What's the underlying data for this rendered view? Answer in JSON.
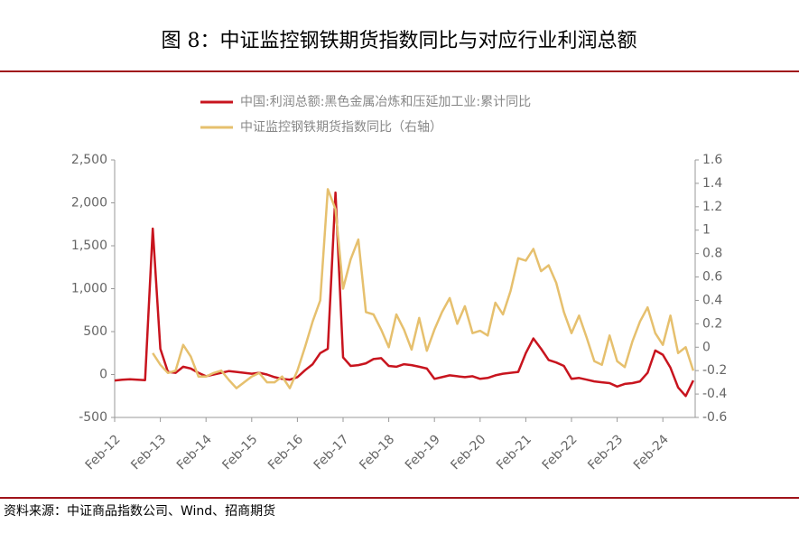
{
  "chart_data": {
    "type": "line",
    "title": "图 8：中证监控钢铁期货指数同比与对应行业利润总额",
    "source": "资料来源：中证商品指数公司、Wind、招商期货",
    "categories": [
      "Feb-12",
      null,
      null,
      null,
      null,
      null,
      "Feb-13",
      null,
      null,
      null,
      null,
      null,
      "Feb-14",
      null,
      null,
      null,
      null,
      null,
      "Feb-15",
      null,
      null,
      null,
      null,
      null,
      "Feb-16",
      null,
      null,
      null,
      null,
      null,
      "Feb-17",
      null,
      null,
      null,
      null,
      null,
      "Feb-18",
      null,
      null,
      null,
      null,
      null,
      "Feb-19",
      null,
      null,
      null,
      null,
      null,
      "Feb-20",
      null,
      null,
      null,
      null,
      null,
      "Feb-21",
      null,
      null,
      null,
      null,
      null,
      "Feb-22",
      null,
      null,
      null,
      null,
      null,
      "Feb-23",
      null,
      null,
      null,
      null,
      null,
      "Feb-24",
      null,
      null,
      null,
      null
    ],
    "series": [
      {
        "name": "中国:利润总额:黑色金属冶炼和压延加工业:累计同比",
        "color": "#c8141e",
        "axis": "y",
        "values": [
          -70,
          -60,
          -55,
          -60,
          -65,
          1700,
          300,
          30,
          20,
          90,
          70,
          20,
          -20,
          0,
          20,
          40,
          30,
          20,
          10,
          20,
          0,
          -30,
          -50,
          -60,
          -30,
          50,
          120,
          250,
          300,
          2120,
          200,
          100,
          110,
          130,
          180,
          190,
          100,
          90,
          120,
          110,
          90,
          70,
          -50,
          -30,
          -10,
          -20,
          -30,
          -20,
          -50,
          -40,
          -10,
          10,
          20,
          30,
          250,
          420,
          300,
          170,
          140,
          100,
          -50,
          -40,
          -60,
          -80,
          -90,
          -100,
          -140,
          -110,
          -100,
          -80,
          20,
          280,
          230,
          80,
          -150,
          -250,
          -70
        ]
      },
      {
        "name": "中证监控钢铁期货指数同比（右轴）",
        "color": "#e6c06e",
        "axis": "y2",
        "values": [
          null,
          null,
          null,
          null,
          null,
          -0.05,
          -0.15,
          -0.22,
          -0.2,
          0.02,
          -0.08,
          -0.25,
          -0.25,
          -0.22,
          -0.2,
          -0.28,
          -0.35,
          -0.3,
          -0.25,
          -0.22,
          -0.3,
          -0.3,
          -0.25,
          -0.35,
          -0.2,
          0.0,
          0.22,
          0.4,
          1.35,
          1.18,
          0.5,
          0.75,
          0.92,
          0.3,
          0.28,
          0.15,
          0.0,
          0.28,
          0.15,
          -0.02,
          0.25,
          -0.03,
          0.15,
          0.3,
          0.42,
          0.2,
          0.35,
          0.12,
          0.14,
          0.1,
          0.38,
          0.28,
          0.48,
          0.76,
          0.74,
          0.84,
          0.65,
          0.7,
          0.55,
          0.3,
          0.12,
          0.27,
          0.08,
          -0.12,
          -0.15,
          0.1,
          -0.12,
          -0.17,
          0.05,
          0.22,
          0.34,
          0.12,
          0.02,
          0.27,
          -0.05,
          0.0,
          -0.2
        ]
      }
    ],
    "ylim": [
      -500,
      2500
    ],
    "yticks": [
      -500,
      0,
      500,
      {
        "value": 1000,
        "label": "1,000"
      },
      {
        "value": 1500,
        "label": "1,500"
      },
      {
        "value": 2000,
        "label": "2,000"
      },
      {
        "value": 2500,
        "label": "2,500"
      }
    ],
    "y2lim": [
      -0.6,
      1.6
    ],
    "y2ticks": [
      -0.6,
      -0.4,
      -0.2,
      0,
      0.2,
      0.4,
      0.6,
      0.8,
      1,
      1.2,
      1.4,
      1.6
    ],
    "grid": false
  }
}
